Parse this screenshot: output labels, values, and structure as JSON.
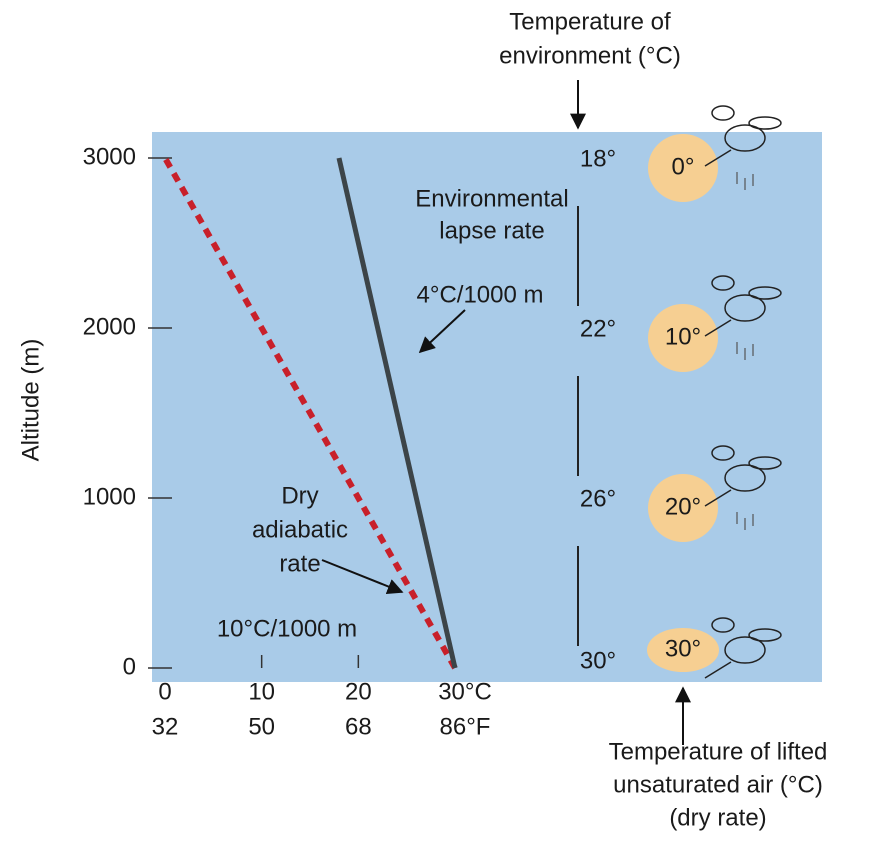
{
  "chart_data": {
    "type": "line",
    "y_label": "Altitude (m)",
    "xlim": [
      0,
      30
    ],
    "ylim": [
      0,
      3000
    ],
    "xticks": [
      0,
      10,
      20,
      {
        "value": 30,
        "label": "30°C"
      }
    ],
    "xticks_f": [
      {
        "value": 0,
        "label": "32"
      },
      {
        "value": 10,
        "label": "50"
      },
      {
        "value": 20,
        "label": "68"
      },
      {
        "value": 30,
        "label": "86°F"
      }
    ],
    "yticks": [
      0,
      1000,
      2000,
      3000
    ],
    "series": [
      {
        "name": "Dry adiabatic rate",
        "color": "#c8202a",
        "dashed": true,
        "x": [
          30,
          0
        ],
        "y": [
          0,
          3000
        ]
      },
      {
        "name": "Environmental lapse rate",
        "color": "#3c4448",
        "dashed": false,
        "x": [
          30,
          18
        ],
        "y": [
          0,
          3000
        ]
      }
    ],
    "altitudes": [
      3000,
      2000,
      1000,
      0
    ],
    "environment_temps": {
      "values": [
        18,
        22,
        26,
        30
      ],
      "value_labels": [
        "18°",
        "22°",
        "26°",
        "30°"
      ]
    },
    "parcel_temps": {
      "values": [
        0,
        10,
        20,
        30
      ],
      "value_labels": [
        "0°",
        "10°",
        "20°",
        "30°"
      ]
    },
    "annotations": {
      "environment_title": [
        "Temperature of",
        "environment (°C)"
      ],
      "environmental": [
        "Environmental",
        "lapse rate"
      ],
      "environmental_rate": "4°C/1000 m",
      "dry": [
        "Dry",
        "adiabatic",
        "rate"
      ],
      "dry_rate": "10°C/1000 m",
      "parcel_title": [
        "Temperature of lifted",
        "unsaturated air (°C)",
        "(dry rate)"
      ]
    }
  }
}
